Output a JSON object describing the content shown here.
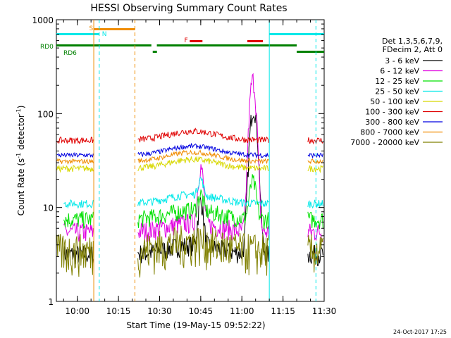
{
  "chart_data": {
    "type": "line",
    "title": "HESSI Observing Summary Count Rates",
    "xlabel": "Start Time (19-May-15 09:52:22)",
    "ylabel_main": "Count Rate (s",
    "ylabel_sup1": "-1",
    "ylabel_mid": " detector",
    "ylabel_sup2": "-1",
    "ylabel_end": ")",
    "yscale": "log",
    "ylim": [
      1,
      1000
    ],
    "xlim": [
      "09:52:22",
      "11:30:00"
    ],
    "x_ticks": [
      "10:00",
      "10:15",
      "10:30",
      "10:45",
      "11:00",
      "11:15",
      "11:30"
    ],
    "y_ticks": [
      "1",
      "10",
      "100",
      "1000"
    ],
    "legend_header": [
      "Det 1,3,5,6,7,9,",
      "FDecim 2, Att 0"
    ],
    "series": [
      {
        "name": "3 - 6 keV",
        "color": "#000000"
      },
      {
        "name": "6 - 12 keV",
        "color": "#e000e0"
      },
      {
        "name": "12 - 25 keV",
        "color": "#00e000"
      },
      {
        "name": "25 - 50 keV",
        "color": "#00e8e8"
      },
      {
        "name": "50 - 100 keV",
        "color": "#d8d800"
      },
      {
        "name": "100 - 300 keV",
        "color": "#e00000"
      },
      {
        "name": "300 - 800 keV",
        "color": "#0000e0"
      },
      {
        "name": "800 - 7000 keV",
        "color": "#f08c00"
      },
      {
        "name": "7000 - 20000 keV",
        "color": "#808000"
      }
    ],
    "flags": {
      "S": "S",
      "N": "N",
      "F": "F",
      "RD0": "RD0",
      "RD6": "RD6"
    },
    "gaps": [
      [
        "10:06",
        "10:22"
      ],
      [
        "11:10",
        "11:24"
      ]
    ],
    "flare_peak": "11:04"
  },
  "timestamp": "24-Oct-2017 17:25"
}
